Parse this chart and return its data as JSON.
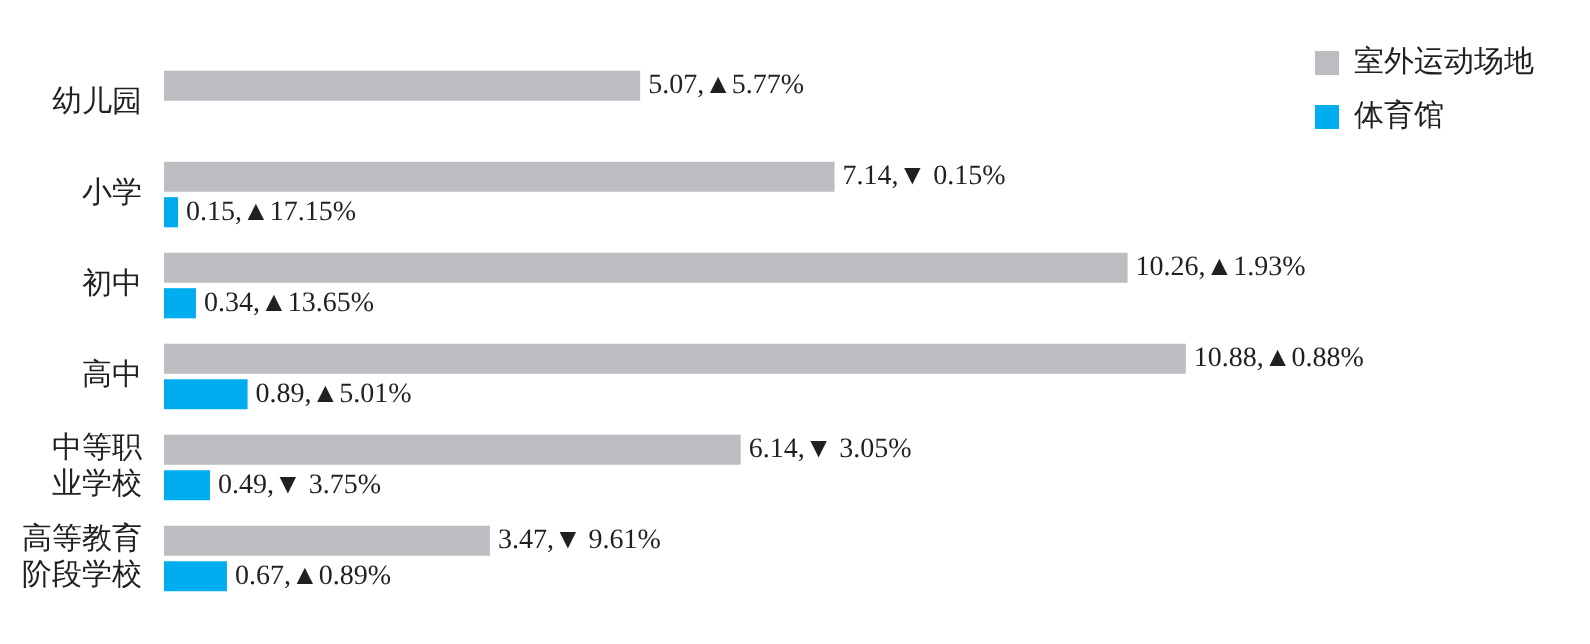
{
  "chart_data": {
    "type": "bar",
    "orientation": "horizontal",
    "categories": [
      "幼儿园",
      "小学",
      "初中",
      "高中",
      "中等职业学校",
      "高等教育阶段学校"
    ],
    "series": [
      {
        "name": "室外运动场地",
        "color": "#bcbdc0",
        "values": [
          5.07,
          7.14,
          10.26,
          10.88,
          6.14,
          3.47
        ],
        "value_labels": [
          "5.07,▲5.77%",
          "7.14,▼ 0.15%",
          "10.26,▲1.93%",
          "10.88,▲0.88%",
          "6.14,▼ 3.05%",
          "3.47,▼ 9.61%"
        ]
      },
      {
        "name": "体育馆",
        "color": "#00aeef",
        "values": [
          null,
          0.15,
          0.34,
          0.89,
          0.49,
          0.67
        ],
        "value_labels": [
          null,
          "0.15,▲17.15%",
          "0.34,▲13.65%",
          "0.89,▲5.01%",
          "0.49,▼ 3.75%",
          "0.67,▲0.89%"
        ]
      }
    ],
    "legend": "top right",
    "grid": false,
    "tick_labels": "y"
  }
}
